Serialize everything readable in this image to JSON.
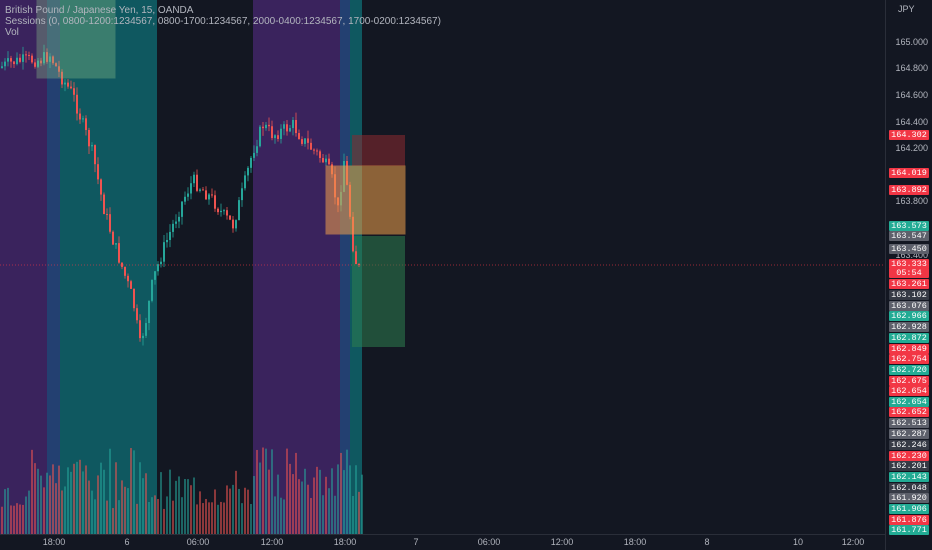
{
  "legend": {
    "title": "British Pound / Japanese Yen, 15, OANDA",
    "sessions": "Sessions (0, 0800-1200:1234567, 0800-1700:1234567, 2000-0400:1234567, 1700-0200:1234567)",
    "volume": "Vol"
  },
  "price_axis": {
    "currency": "JPY",
    "ticks": [
      "165.000",
      "164.800",
      "164.600",
      "164.400",
      "164.200",
      "163.800",
      "163.400"
    ]
  },
  "price_tags": [
    {
      "text": "164.302",
      "color": "#f23645"
    },
    {
      "text": "164.019",
      "color": "#f23645"
    },
    {
      "text": "163.892",
      "color": "#f23645"
    },
    {
      "text": "163.573",
      "color": "#22ab94"
    },
    {
      "text": "163.547",
      "color": "#5d606b"
    },
    {
      "text": "163.450",
      "color": "#5d606b"
    },
    {
      "text": "163.333",
      "color": "#f23645"
    },
    {
      "text": "05:54",
      "color": "#f23645"
    },
    {
      "text": "163.261",
      "color": "#f23645"
    },
    {
      "text": "163.102",
      "color": "#363a45"
    },
    {
      "text": "163.076",
      "color": "#5d606b"
    },
    {
      "text": "162.966",
      "color": "#22ab94"
    },
    {
      "text": "162.928",
      "color": "#5d606b"
    },
    {
      "text": "162.872",
      "color": "#22ab94"
    },
    {
      "text": "162.849",
      "color": "#f23645"
    },
    {
      "text": "162.754",
      "color": "#f23645"
    },
    {
      "text": "162.720",
      "color": "#22ab94"
    },
    {
      "text": "162.675",
      "color": "#f23645"
    },
    {
      "text": "162.654",
      "color": "#f23645"
    },
    {
      "text": "162.654",
      "color": "#22ab94"
    },
    {
      "text": "162.652",
      "color": "#f23645"
    },
    {
      "text": "162.513",
      "color": "#5d606b"
    },
    {
      "text": "162.287",
      "color": "#5d606b"
    },
    {
      "text": "162.246",
      "color": "#363a45"
    },
    {
      "text": "162.230",
      "color": "#f23645"
    },
    {
      "text": "162.201",
      "color": "#363a45"
    },
    {
      "text": "162.143",
      "color": "#22ab94"
    },
    {
      "text": "162.048",
      "color": "#363a45"
    },
    {
      "text": "161.920",
      "color": "#5d606b"
    },
    {
      "text": "161.906",
      "color": "#22ab94"
    },
    {
      "text": "161.876",
      "color": "#f23645"
    },
    {
      "text": "161.771",
      "color": "#22ab94"
    }
  ],
  "time_axis": {
    "labels": [
      "18:00",
      "6",
      "06:00",
      "12:00",
      "18:00",
      "7",
      "06:00",
      "12:00",
      "18:00",
      "8",
      "10",
      "12:00"
    ]
  },
  "colors": {
    "up": "#26a69a",
    "down": "#ef5350",
    "session_asia": "#5b2d8e",
    "session_london": "#0f6f75",
    "session_overlap": "#2a4f8c",
    "position_profit": "#2e7d4f",
    "position_loss": "#8c2a2f",
    "box_orange": "#f0a04b",
    "box_green": "#8bc48a"
  }
}
